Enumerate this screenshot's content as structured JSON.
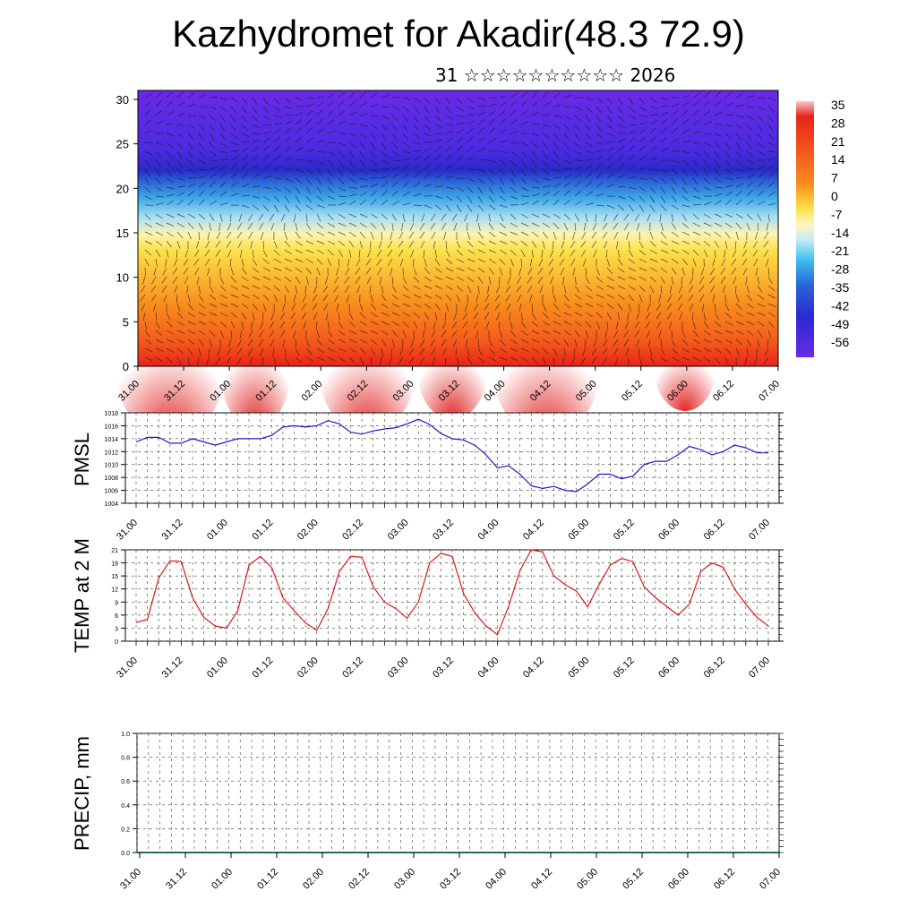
{
  "title": "Kazhydromet for Akadir(48.3 72.9)",
  "subtitle": "31 ☆☆☆☆☆☆☆☆☆☆ 2026",
  "time_labels": [
    "31.00",
    "31.12",
    "01.00",
    "01.12",
    "02.00",
    "02.12",
    "03.00",
    "03.12",
    "04.00",
    "04.12",
    "05.00",
    "05.12",
    "06.00",
    "06.12",
    "07.00"
  ],
  "chart_data": [
    {
      "type": "heatmap",
      "name": "temperature-wind-cross-section",
      "x": [
        "31.00",
        "31.12",
        "01.00",
        "01.12",
        "02.00",
        "02.12",
        "03.00",
        "03.12",
        "04.00",
        "04.12",
        "05.00",
        "05.12",
        "06.00",
        "06.12",
        "07.00"
      ],
      "yticks": [
        0,
        5,
        10,
        15,
        20,
        25,
        30
      ],
      "ylim": [
        0,
        31
      ],
      "colorbar_labels": [
        "35",
        "28",
        "21",
        "14",
        "7",
        "0",
        "-7",
        "-14",
        "-21",
        "-28",
        "-35",
        "-42",
        "-49",
        "-56"
      ],
      "colors": {
        "hot": "#e8231a",
        "warm": "#f98b1c",
        "mild": "#fde14a",
        "cool": "#8fd3f0",
        "cold": "#2a3ad8",
        "frigid": "#6a2ae8"
      }
    },
    {
      "type": "line",
      "ylabel": "PMSL",
      "ylim": [
        1004,
        1018
      ],
      "yticks": [
        "1018",
        "1016",
        "1014",
        "1012",
        "1010",
        "1008",
        "1006",
        "1004"
      ],
      "color": "#1a1ad0",
      "values": [
        1013.5,
        1014.2,
        1014.2,
        1013.3,
        1013.3,
        1014,
        1013.5,
        1013,
        1013.5,
        1014,
        1014,
        1014,
        1014.5,
        1015.8,
        1016,
        1015.8,
        1016,
        1016.8,
        1016.3,
        1015,
        1014.7,
        1015.2,
        1015.5,
        1015.7,
        1016.3,
        1017,
        1016.2,
        1014.8,
        1014,
        1013.8,
        1013,
        1011.5,
        1009.5,
        1009.8,
        1008.5,
        1006.7,
        1006.3,
        1006.6,
        1006,
        1005.8,
        1007,
        1008.5,
        1008.5,
        1007.8,
        1008.2,
        1010,
        1010.5,
        1010.5,
        1011.5,
        1012.8,
        1012.3,
        1011.5,
        1012,
        1013,
        1012.6,
        1011.8,
        1011.8
      ]
    },
    {
      "type": "line",
      "ylabel": "TEMP at 2 M",
      "ylim": [
        0,
        21
      ],
      "yticks": [
        "21",
        "18",
        "15",
        "12",
        "9",
        "6",
        "3",
        "0"
      ],
      "color": "#e01818",
      "values": [
        4.3,
        5,
        14.5,
        18.5,
        18.3,
        10,
        5.5,
        3.5,
        3,
        7,
        17.5,
        19.5,
        17,
        10,
        7,
        4.2,
        2.5,
        7.5,
        16,
        19.5,
        19.3,
        12.5,
        9,
        7.5,
        5.3,
        9,
        18,
        20.2,
        19.5,
        11,
        6.5,
        3.5,
        1.5,
        8,
        16.2,
        21,
        20.5,
        15,
        13,
        11.5,
        7.9,
        13,
        17.5,
        19,
        18.3,
        12.5,
        10,
        8,
        6,
        8.5,
        16,
        18,
        17,
        12,
        8.5,
        5.5,
        3.5
      ]
    },
    {
      "type": "line",
      "ylabel": "PRECIP, mm",
      "ylim": [
        0,
        1
      ],
      "yticks": [
        "1.0",
        "0.8",
        "0.6",
        "0.4",
        "0.2",
        "0.0"
      ],
      "color": "#2e6b4f",
      "values": [
        0,
        0,
        0,
        0,
        0,
        0,
        0,
        0,
        0,
        0,
        0,
        0,
        0,
        0,
        0,
        0,
        0,
        0,
        0,
        0,
        0,
        0,
        0,
        0,
        0,
        0,
        0,
        0,
        0,
        0,
        0,
        0,
        0,
        0,
        0,
        0,
        0,
        0,
        0,
        0,
        0,
        0,
        0,
        0,
        0,
        0,
        0,
        0,
        0,
        0,
        0,
        0,
        0,
        0,
        0,
        0,
        0
      ]
    }
  ]
}
